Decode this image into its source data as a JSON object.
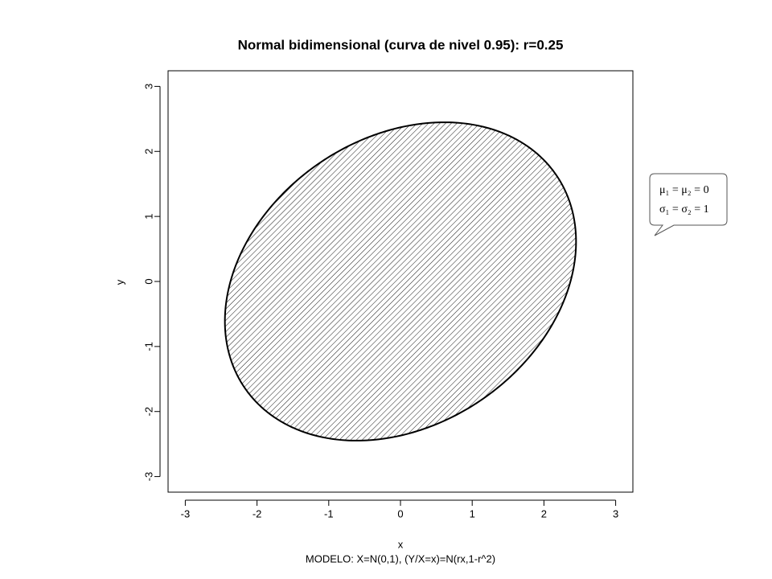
{
  "chart_data": {
    "type": "contour",
    "title": "Normal bidimensional (curva de nivel 0.95): r=0.25",
    "x_label": "x",
    "y_label": "y",
    "subtitle": "MODELO: X=N(0,1), (Y/X=x)=N(rx,1-r^2)",
    "r": 0.25,
    "level": 0.95,
    "hatched": true,
    "color": "#000000",
    "xlim": [
      -3.24,
      3.24
    ],
    "ylim": [
      -3.24,
      3.24
    ],
    "xticks": [
      -3,
      -2,
      -1,
      0,
      1,
      2,
      3
    ],
    "yticks": [
      -3,
      -2,
      -1,
      0,
      1,
      2,
      3
    ],
    "annotation": [
      "μ₁ = μ₂ = 0",
      "σ₁ = σ₂ = 1"
    ]
  }
}
